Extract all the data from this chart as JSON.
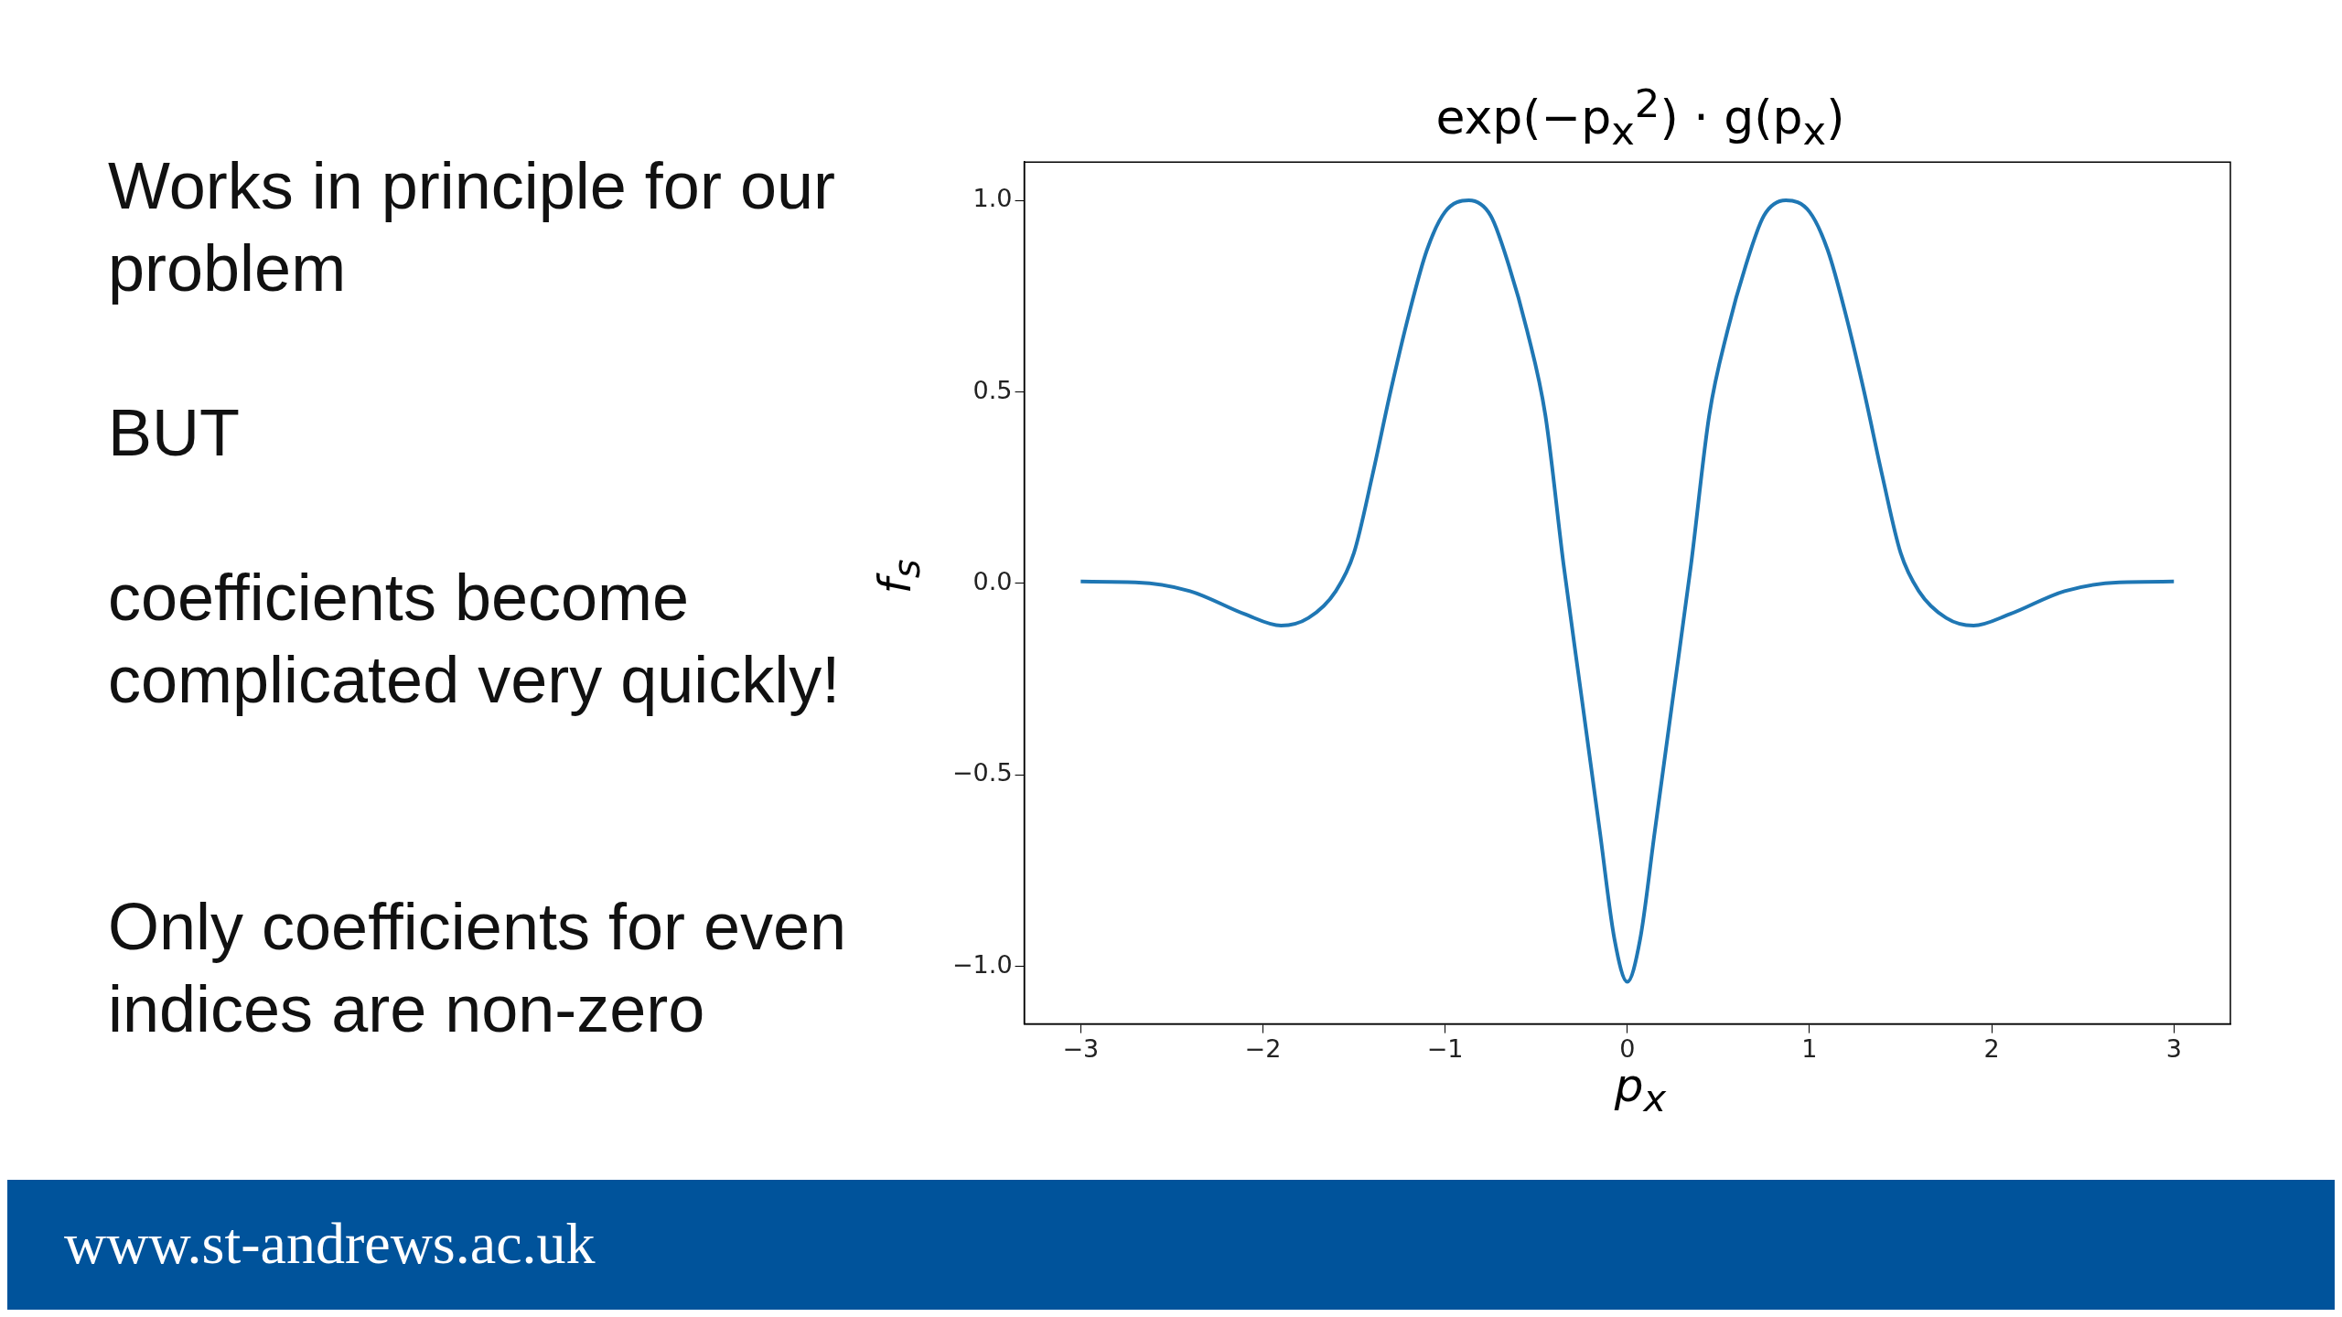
{
  "chart_data": {
    "type": "line",
    "title": "exp(−p$_{x}$$^{2}$) · g(p$_{x}$)",
    "xlabel": "p$_{x}$",
    "ylabel": "f$_{s}$",
    "annotations": [
      "Works in principle for our problem",
      "BUT",
      "coefficients become complicated very quickly!",
      "Only coefficients for even indices are non-zero",
      "www.st-andrews.ac.uk"
    ],
    "x": [
      -3,
      -2.7,
      -2.4,
      -2.1,
      -1.9,
      -1.75,
      -1.6,
      -1.5,
      -1.4,
      -1.3,
      -1.2,
      -1.1,
      -1.0,
      -0.87,
      -0.75,
      -0.65,
      -0.55,
      -0.45,
      -0.35,
      -0.25,
      -0.15,
      -0.07,
      0,
      0.07,
      0.15,
      0.25,
      0.35,
      0.45,
      0.55,
      0.65,
      0.75,
      0.87,
      1.0,
      1.1,
      1.2,
      1.3,
      1.4,
      1.5,
      1.6,
      1.75,
      1.9,
      2.1,
      2.4,
      2.7,
      3
    ],
    "series": [
      {
        "color": "#1f77b4",
        "values": [
          0.005,
          0.003,
          -0.02,
          -0.08,
          -0.11,
          -0.09,
          -0.02,
          0.08,
          0.28,
          0.5,
          0.7,
          0.87,
          0.97,
          1.0,
          0.96,
          0.83,
          0.66,
          0.44,
          0.05,
          -0.3,
          -0.65,
          -0.93,
          -1.04,
          -0.93,
          -0.65,
          -0.3,
          0.05,
          0.44,
          0.66,
          0.83,
          0.96,
          1.0,
          0.97,
          0.87,
          0.7,
          0.5,
          0.28,
          0.08,
          -0.02,
          -0.09,
          -0.11,
          -0.08,
          -0.02,
          0.003,
          0.005
        ]
      }
    ],
    "xlim": [
      -3.31,
      3.31
    ],
    "ylim": [
      -1.15,
      1.1
    ],
    "xticks": [
      {
        "value": -3,
        "label": "−3"
      },
      {
        "value": -2,
        "label": "−2"
      },
      {
        "value": -1,
        "label": "−1"
      },
      0,
      1,
      2,
      3
    ],
    "yticks": [
      {
        "value": -1,
        "label": "−1.0"
      },
      {
        "value": -0.5,
        "label": "−0.5"
      },
      {
        "value": 0,
        "label": "0.0"
      },
      0.5,
      {
        "value": 1,
        "label": "1.0"
      }
    ],
    "grid": false,
    "legend": false,
    "marker": "none",
    "line_style": "solid"
  }
}
